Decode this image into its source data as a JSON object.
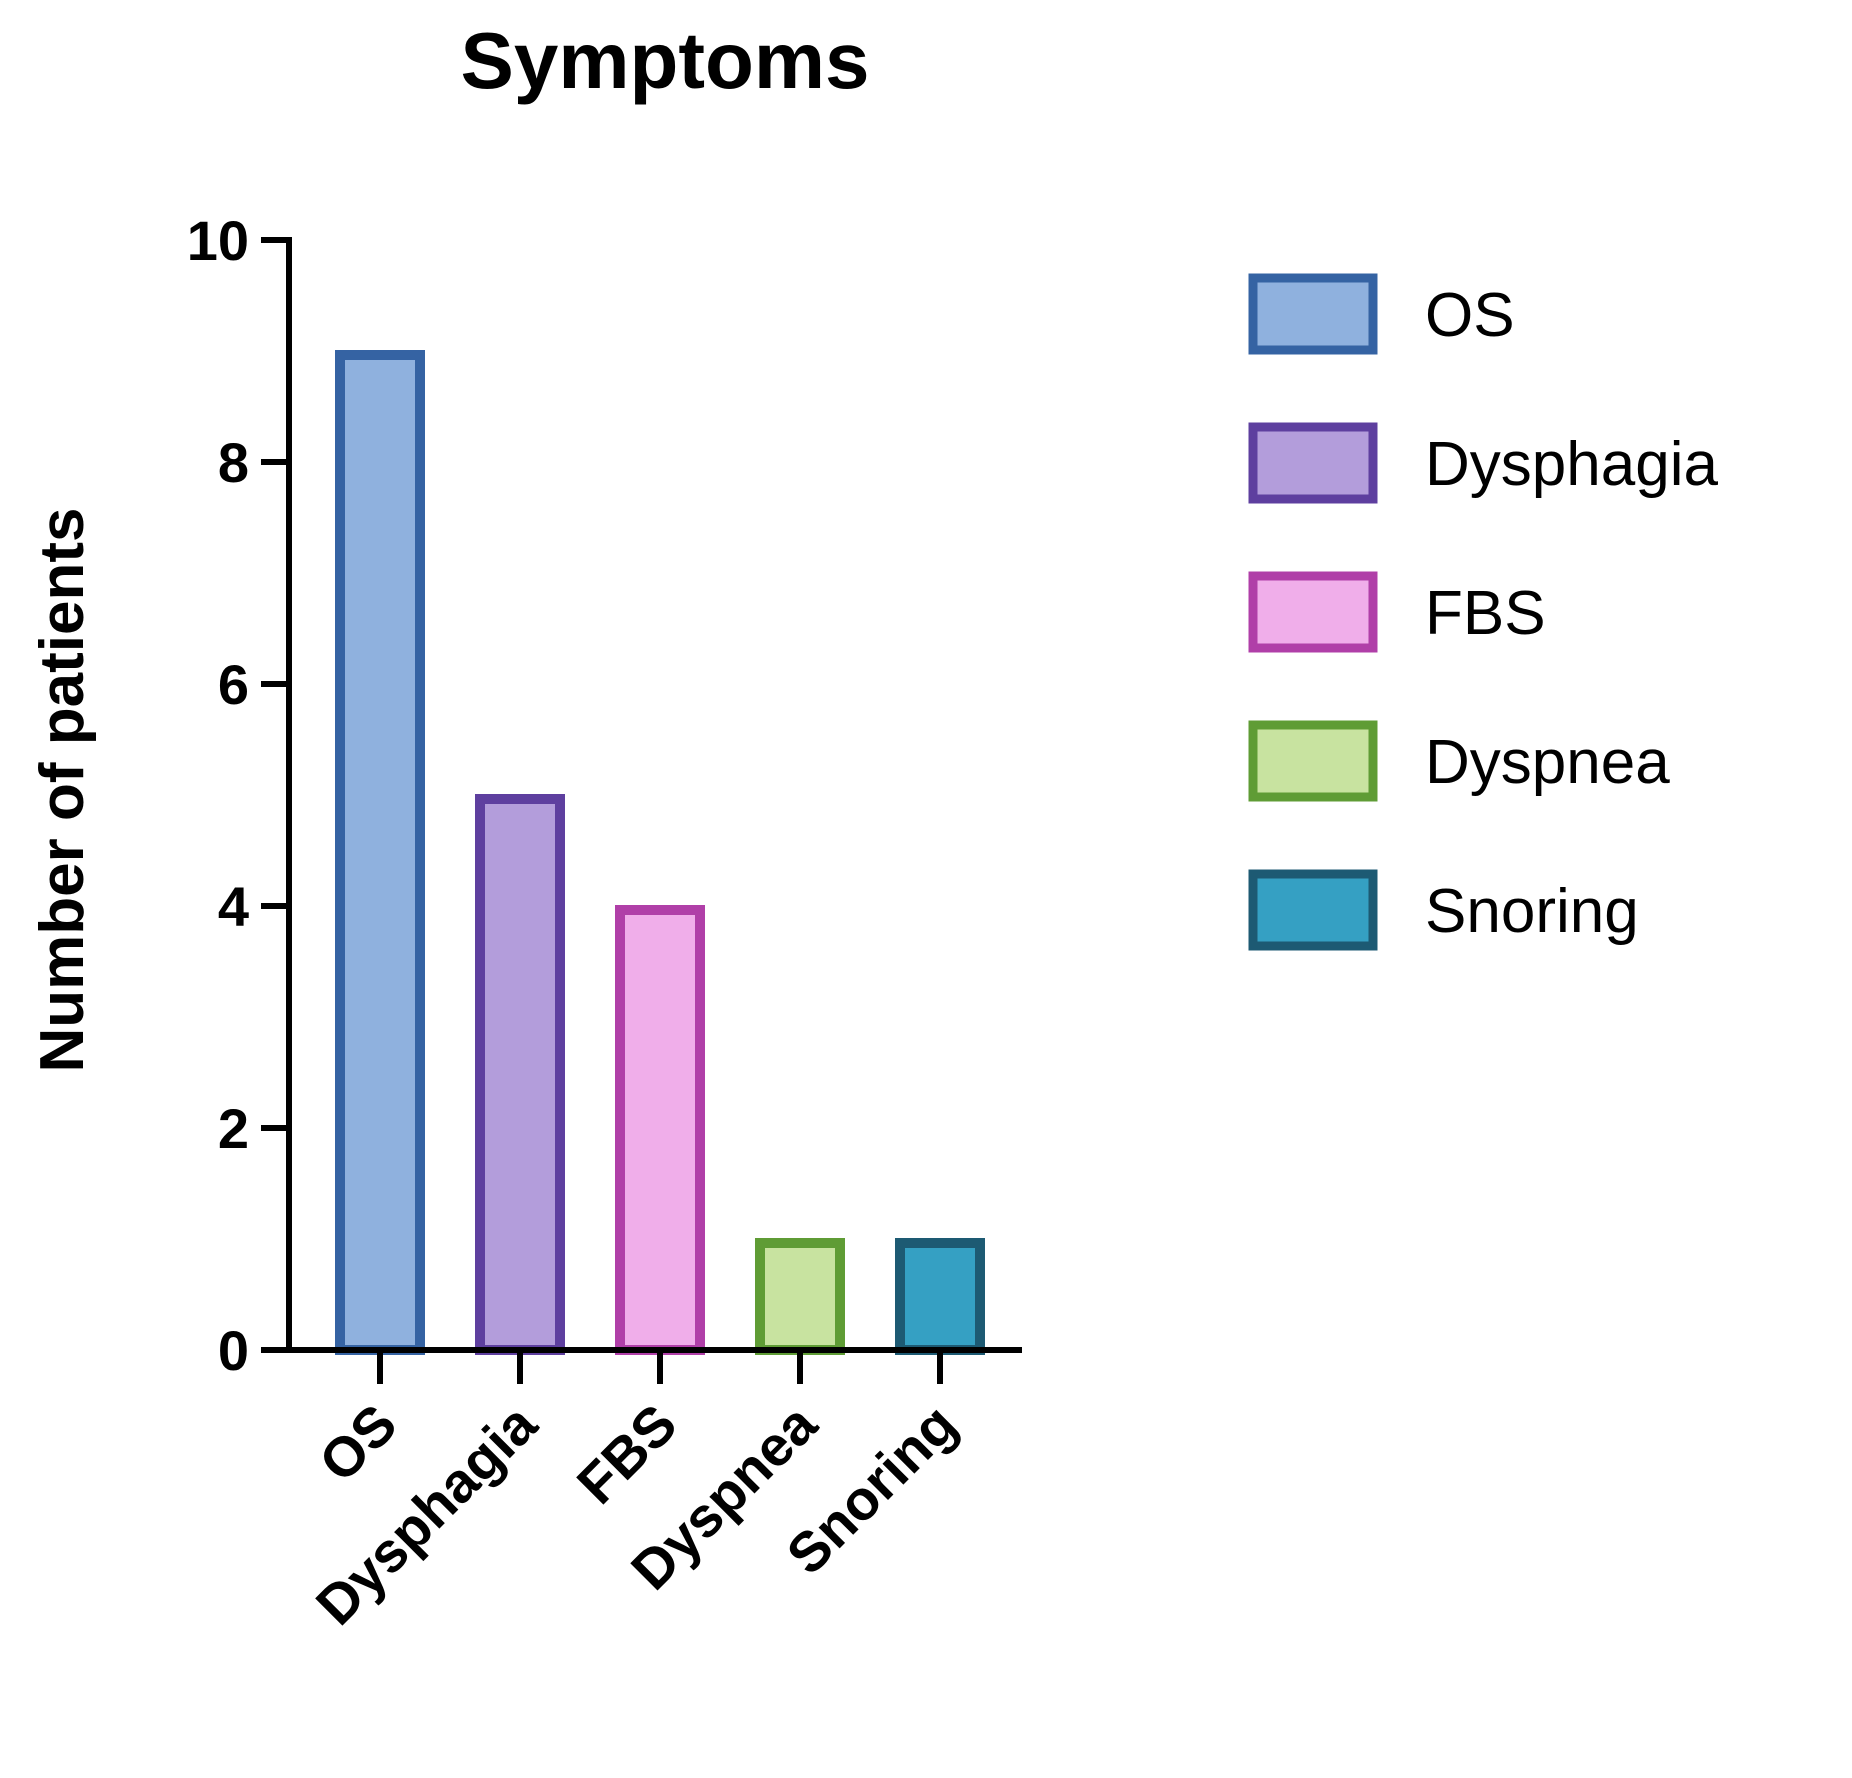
{
  "chart_data": {
    "type": "bar",
    "title": "Symptoms",
    "xlabel": "",
    "ylabel": "Number of patients",
    "categories": [
      "OS",
      "Dysphagia",
      "FBS",
      "Dyspnea",
      "Snoring"
    ],
    "values": [
      9,
      5,
      4,
      1,
      1
    ],
    "ylim": [
      0,
      10
    ],
    "yticks": [
      "0",
      "2",
      "4",
      "6",
      "8",
      "10"
    ],
    "grid": false,
    "legend": {
      "placement": "right",
      "entries": [
        "OS",
        "Dysphagia",
        "FBS",
        "Dyspnea",
        "Snoring"
      ]
    },
    "colors": {
      "fill": [
        "#8fb1de",
        "#b39ddb",
        "#f0aeea",
        "#c8e3a0",
        "#35a0c3"
      ],
      "stroke": [
        "#3563a3",
        "#5e3f9f",
        "#b03fa8",
        "#5f9c35",
        "#1d5a73"
      ]
    }
  }
}
